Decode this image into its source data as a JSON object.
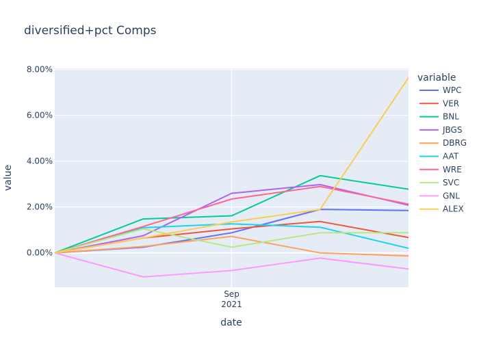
{
  "chart_data": {
    "type": "line",
    "title": "diversified+pct Comps",
    "xlabel": "date",
    "ylabel": "value",
    "legend_title": "variable",
    "legend_placement": "right",
    "x_tick_label": [
      "Sep",
      "2021"
    ],
    "y_ticks": [
      0,
      2,
      4,
      6,
      8
    ],
    "y_tick_labels": [
      "0.00%",
      "2.00%",
      "4.00%",
      "6.00%",
      "8.00%"
    ],
    "ylim": [
      -1.5,
      8.05
    ],
    "grid": true,
    "background": "#e5ecf6",
    "x_count": 5,
    "x_sep_index": 2,
    "series": [
      {
        "name": "WPC",
        "color": "#636efa",
        "values": [
          0,
          0.25,
          0.88,
          1.9,
          1.85
        ]
      },
      {
        "name": "VER",
        "color": "#ef553b",
        "values": [
          0,
          0.65,
          1.05,
          1.37,
          0.67
        ]
      },
      {
        "name": "BNL",
        "color": "#00cc96",
        "values": [
          0,
          1.48,
          1.62,
          3.37,
          2.78
        ]
      },
      {
        "name": "JBGS",
        "color": "#ab63fa",
        "values": [
          0,
          0.75,
          2.6,
          2.98,
          2.08
        ]
      },
      {
        "name": "DBRG",
        "color": "#ffa15a",
        "values": [
          0,
          0.28,
          0.72,
          0.0,
          -0.13
        ]
      },
      {
        "name": "AAT",
        "color": "#19d3f3",
        "values": [
          0,
          1.1,
          1.27,
          1.12,
          0.2
        ]
      },
      {
        "name": "WRE",
        "color": "#ff6692",
        "values": [
          0,
          1.15,
          2.35,
          2.9,
          2.13
        ]
      },
      {
        "name": "SVC",
        "color": "#b6e880",
        "values": [
          0,
          1.05,
          0.25,
          0.88,
          0.88
        ]
      },
      {
        "name": "GNL",
        "color": "#ff97ff",
        "values": [
          0,
          -1.05,
          -0.77,
          -0.23,
          -0.7
        ]
      },
      {
        "name": "ALEX",
        "color": "#fecb52",
        "values": [
          0,
          0.65,
          1.35,
          1.9,
          7.65
        ]
      }
    ]
  }
}
